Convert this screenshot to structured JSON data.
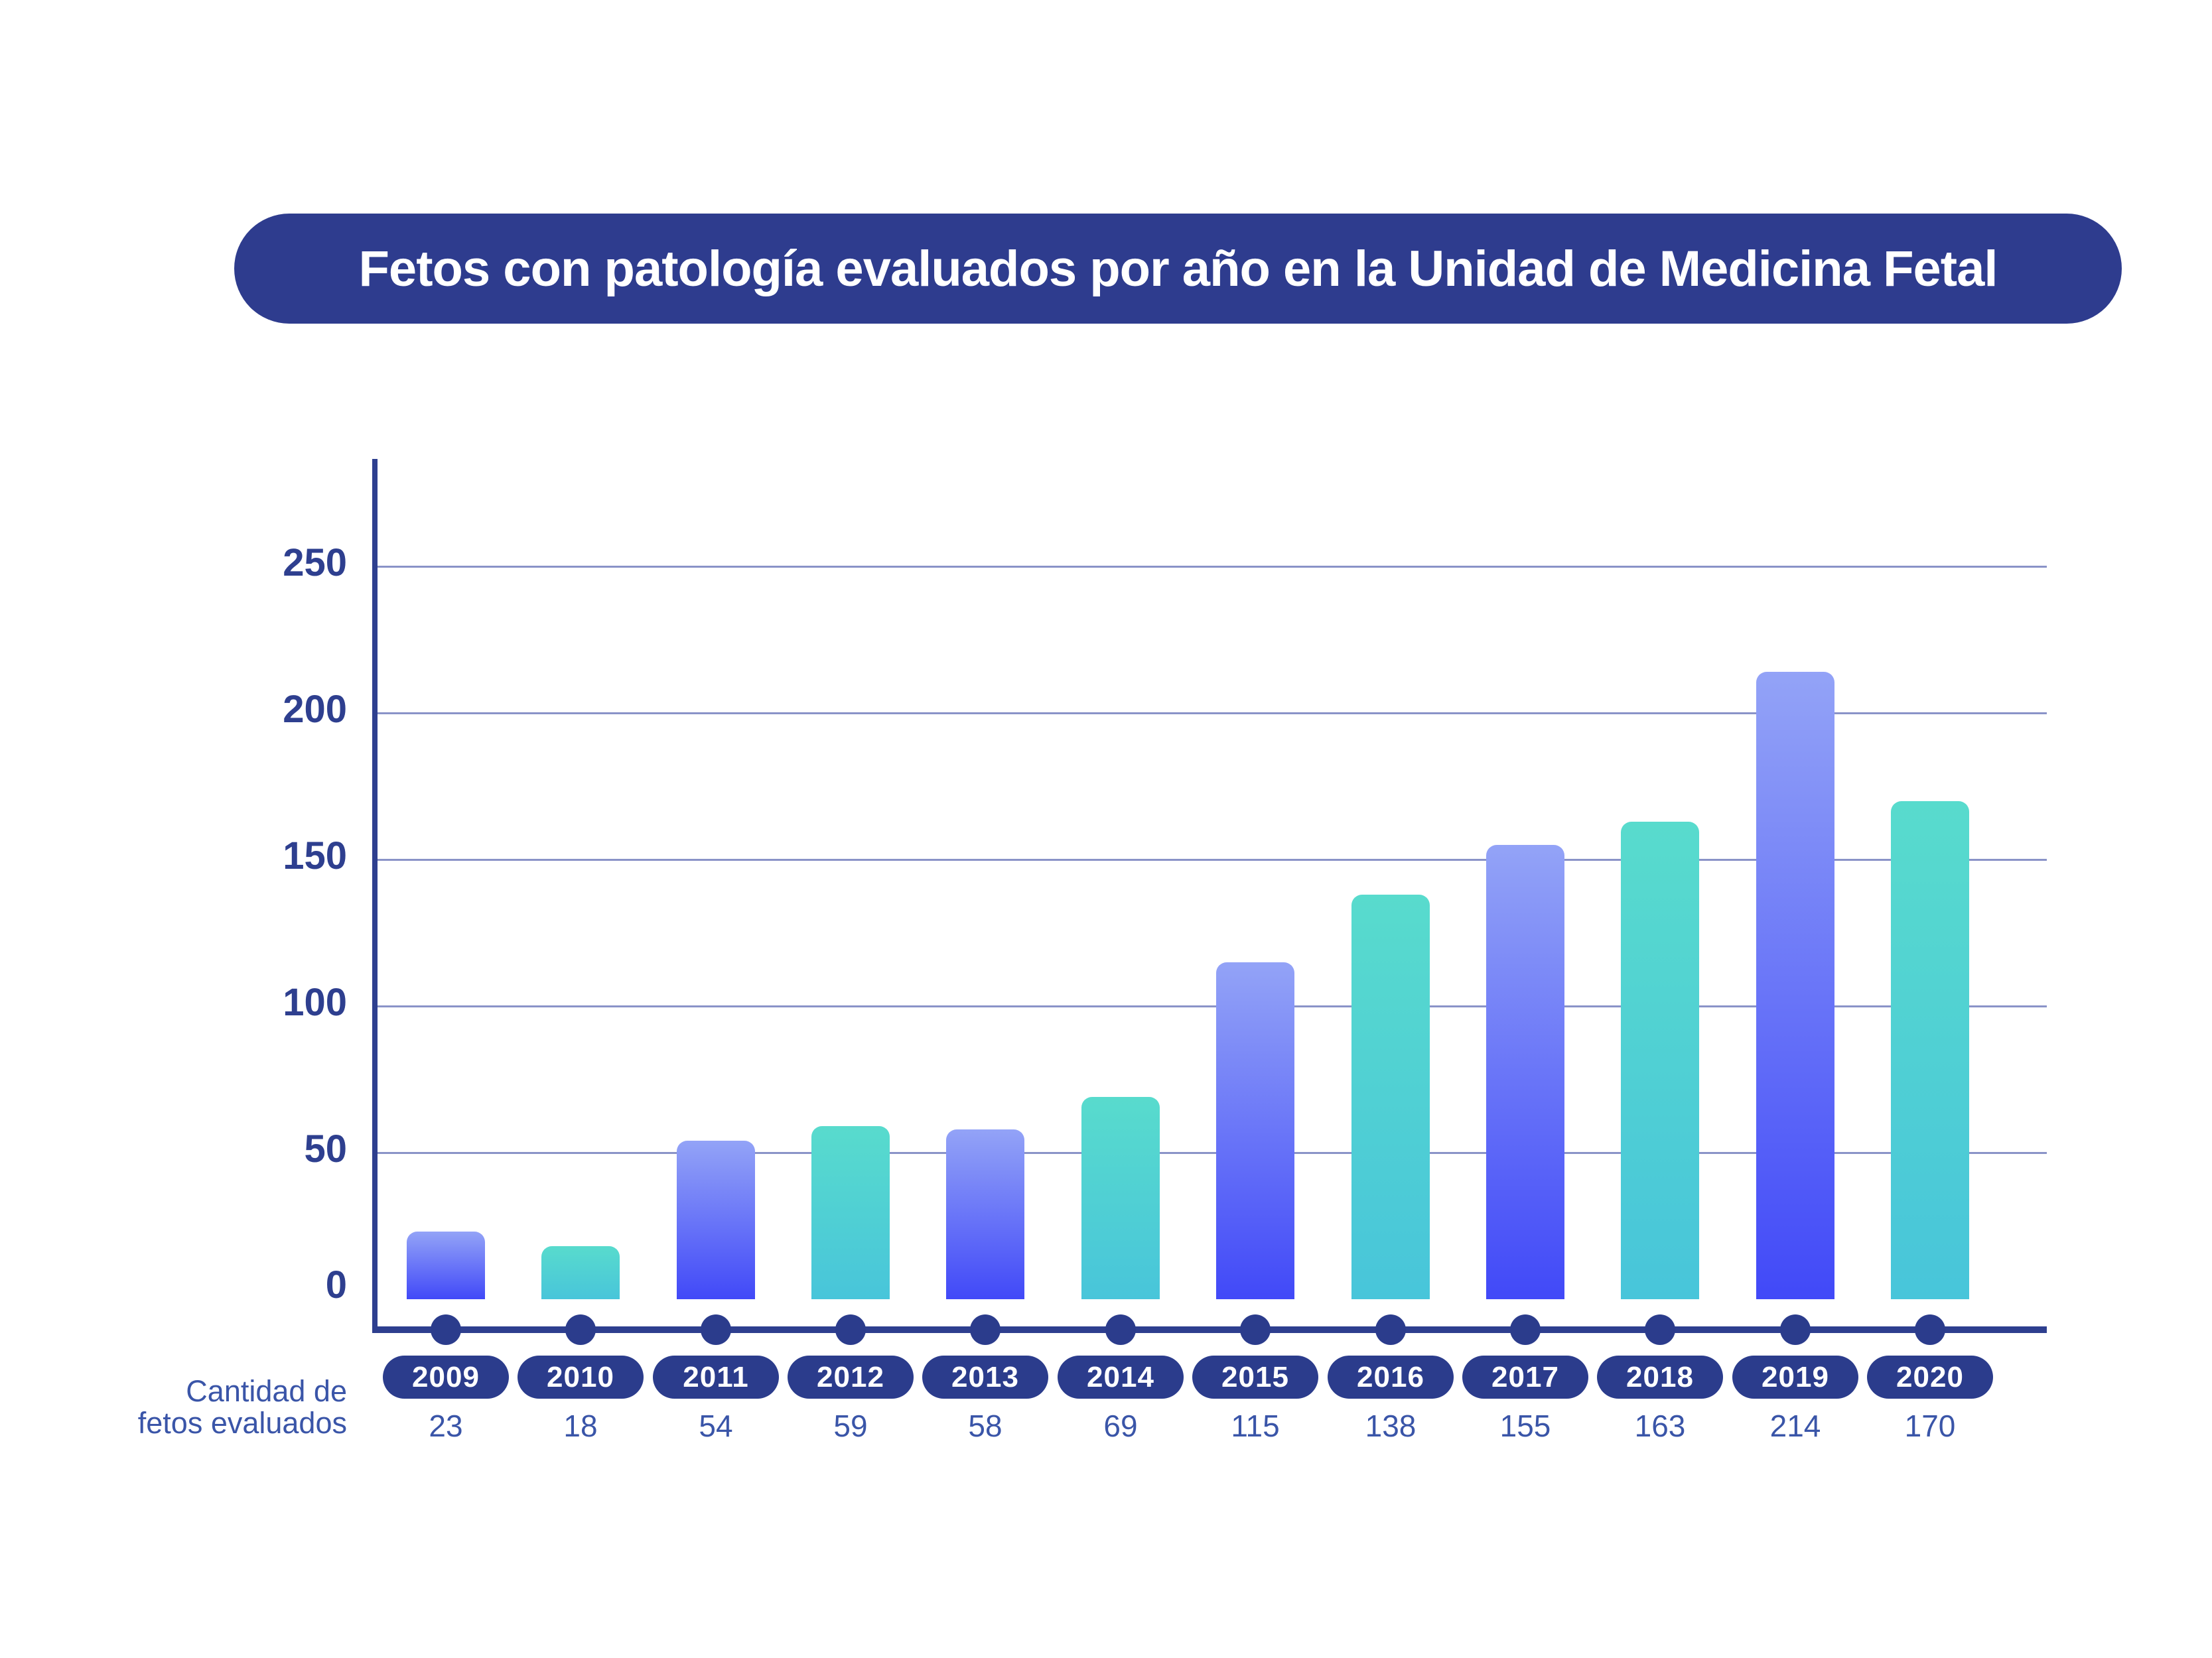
{
  "title": "Fetos con patología evaluados por año en la Unidad de Medicina Fetal",
  "axis_label": {
    "line1": "Cantidad de",
    "line2": "fetos evaluados"
  },
  "chart_data": {
    "type": "bar",
    "categories": [
      "2009",
      "2010",
      "2011",
      "2012",
      "2013",
      "2014",
      "2015",
      "2016",
      "2017",
      "2018",
      "2019",
      "2020"
    ],
    "values": [
      23,
      18,
      54,
      59,
      58,
      69,
      115,
      138,
      155,
      163,
      214,
      170
    ],
    "title": "Fetos con patología evaluados por año en la Unidad de Medicina Fetal",
    "xlabel": "",
    "ylabel": "Cantidad de fetos evaluados",
    "yticks": [
      0,
      50,
      100,
      150,
      200,
      250
    ],
    "ylim": [
      0,
      285
    ],
    "grid": true,
    "legend": false,
    "bar_palette": {
      "odd_years_gradient_top": "#93A3F7",
      "odd_years_gradient_bottom": "#4149F8",
      "even_years_gradient_top": "#58DBCD",
      "even_years_gradient_bottom": "#48C5DA"
    },
    "colors": {
      "banner_background": "#2E3C8E",
      "axis": "#2E3F8F",
      "gridline": "#8A93C8",
      "pill_background": "#2B3C8C",
      "tick_label": "#2E3F8F",
      "value_label": "#3A55A8",
      "title_text": "#ffffff"
    }
  }
}
